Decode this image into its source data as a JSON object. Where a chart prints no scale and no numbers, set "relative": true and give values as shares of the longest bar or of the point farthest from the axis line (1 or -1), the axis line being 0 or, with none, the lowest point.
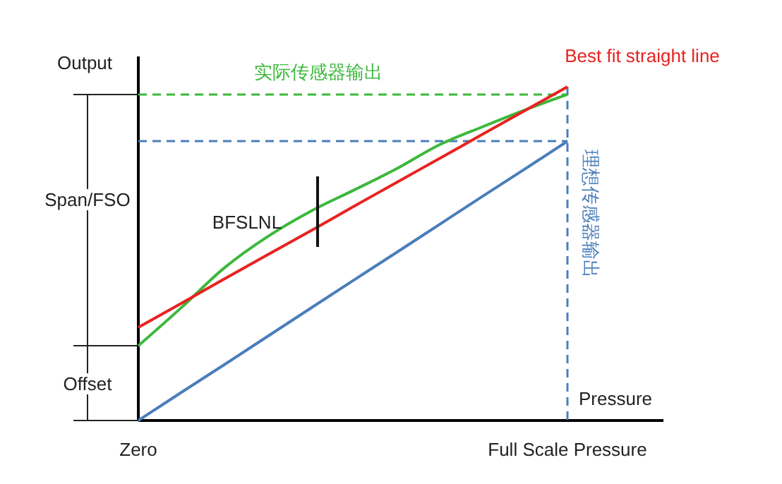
{
  "chart_data": {
    "type": "line",
    "relative": true,
    "ylabel": "Output",
    "xlabel": "Pressure",
    "categories": [
      "Zero",
      null,
      null,
      null,
      null,
      null,
      null,
      null,
      null,
      null,
      "Full Scale Pressure"
    ],
    "series": [
      {
        "name": "理想传感器输出",
        "color": "#4a7ebb",
        "values": [
          0,
          0.084,
          0.167,
          0.251,
          0.335,
          0.419,
          0.502,
          0.586,
          0.67,
          0.753,
          0.837
        ]
      },
      {
        "name": "实际传感器输出",
        "color": "#3cb83c",
        "values": [
          0.224,
          0.338,
          0.457,
          0.55,
          0.626,
          0.689,
          0.753,
          0.825,
          0.879,
          0.93,
          0.977
        ]
      },
      {
        "name": "Best fit straight line",
        "color": "#e8231f",
        "values": [
          0.279,
          0.351,
          0.424,
          0.496,
          0.567,
          0.64,
          0.712,
          0.784,
          0.856,
          0.928,
          1
        ]
      }
    ],
    "ref_lines": [
      {
        "axis": "y",
        "value": 0.977,
        "color": "#3cb83c",
        "line_style": "dashed"
      },
      {
        "axis": "y",
        "value": 0.837,
        "color": "#4a7ebb",
        "line_style": "dashed"
      },
      {
        "axis": "x",
        "value": "Full Scale Pressure",
        "color": "#4a7ebb",
        "line_style": "dashed"
      }
    ],
    "annotations": [
      "Span/FSO",
      "Offset",
      "BFSLNL"
    ],
    "marker": "none",
    "line_style": "solid"
  }
}
